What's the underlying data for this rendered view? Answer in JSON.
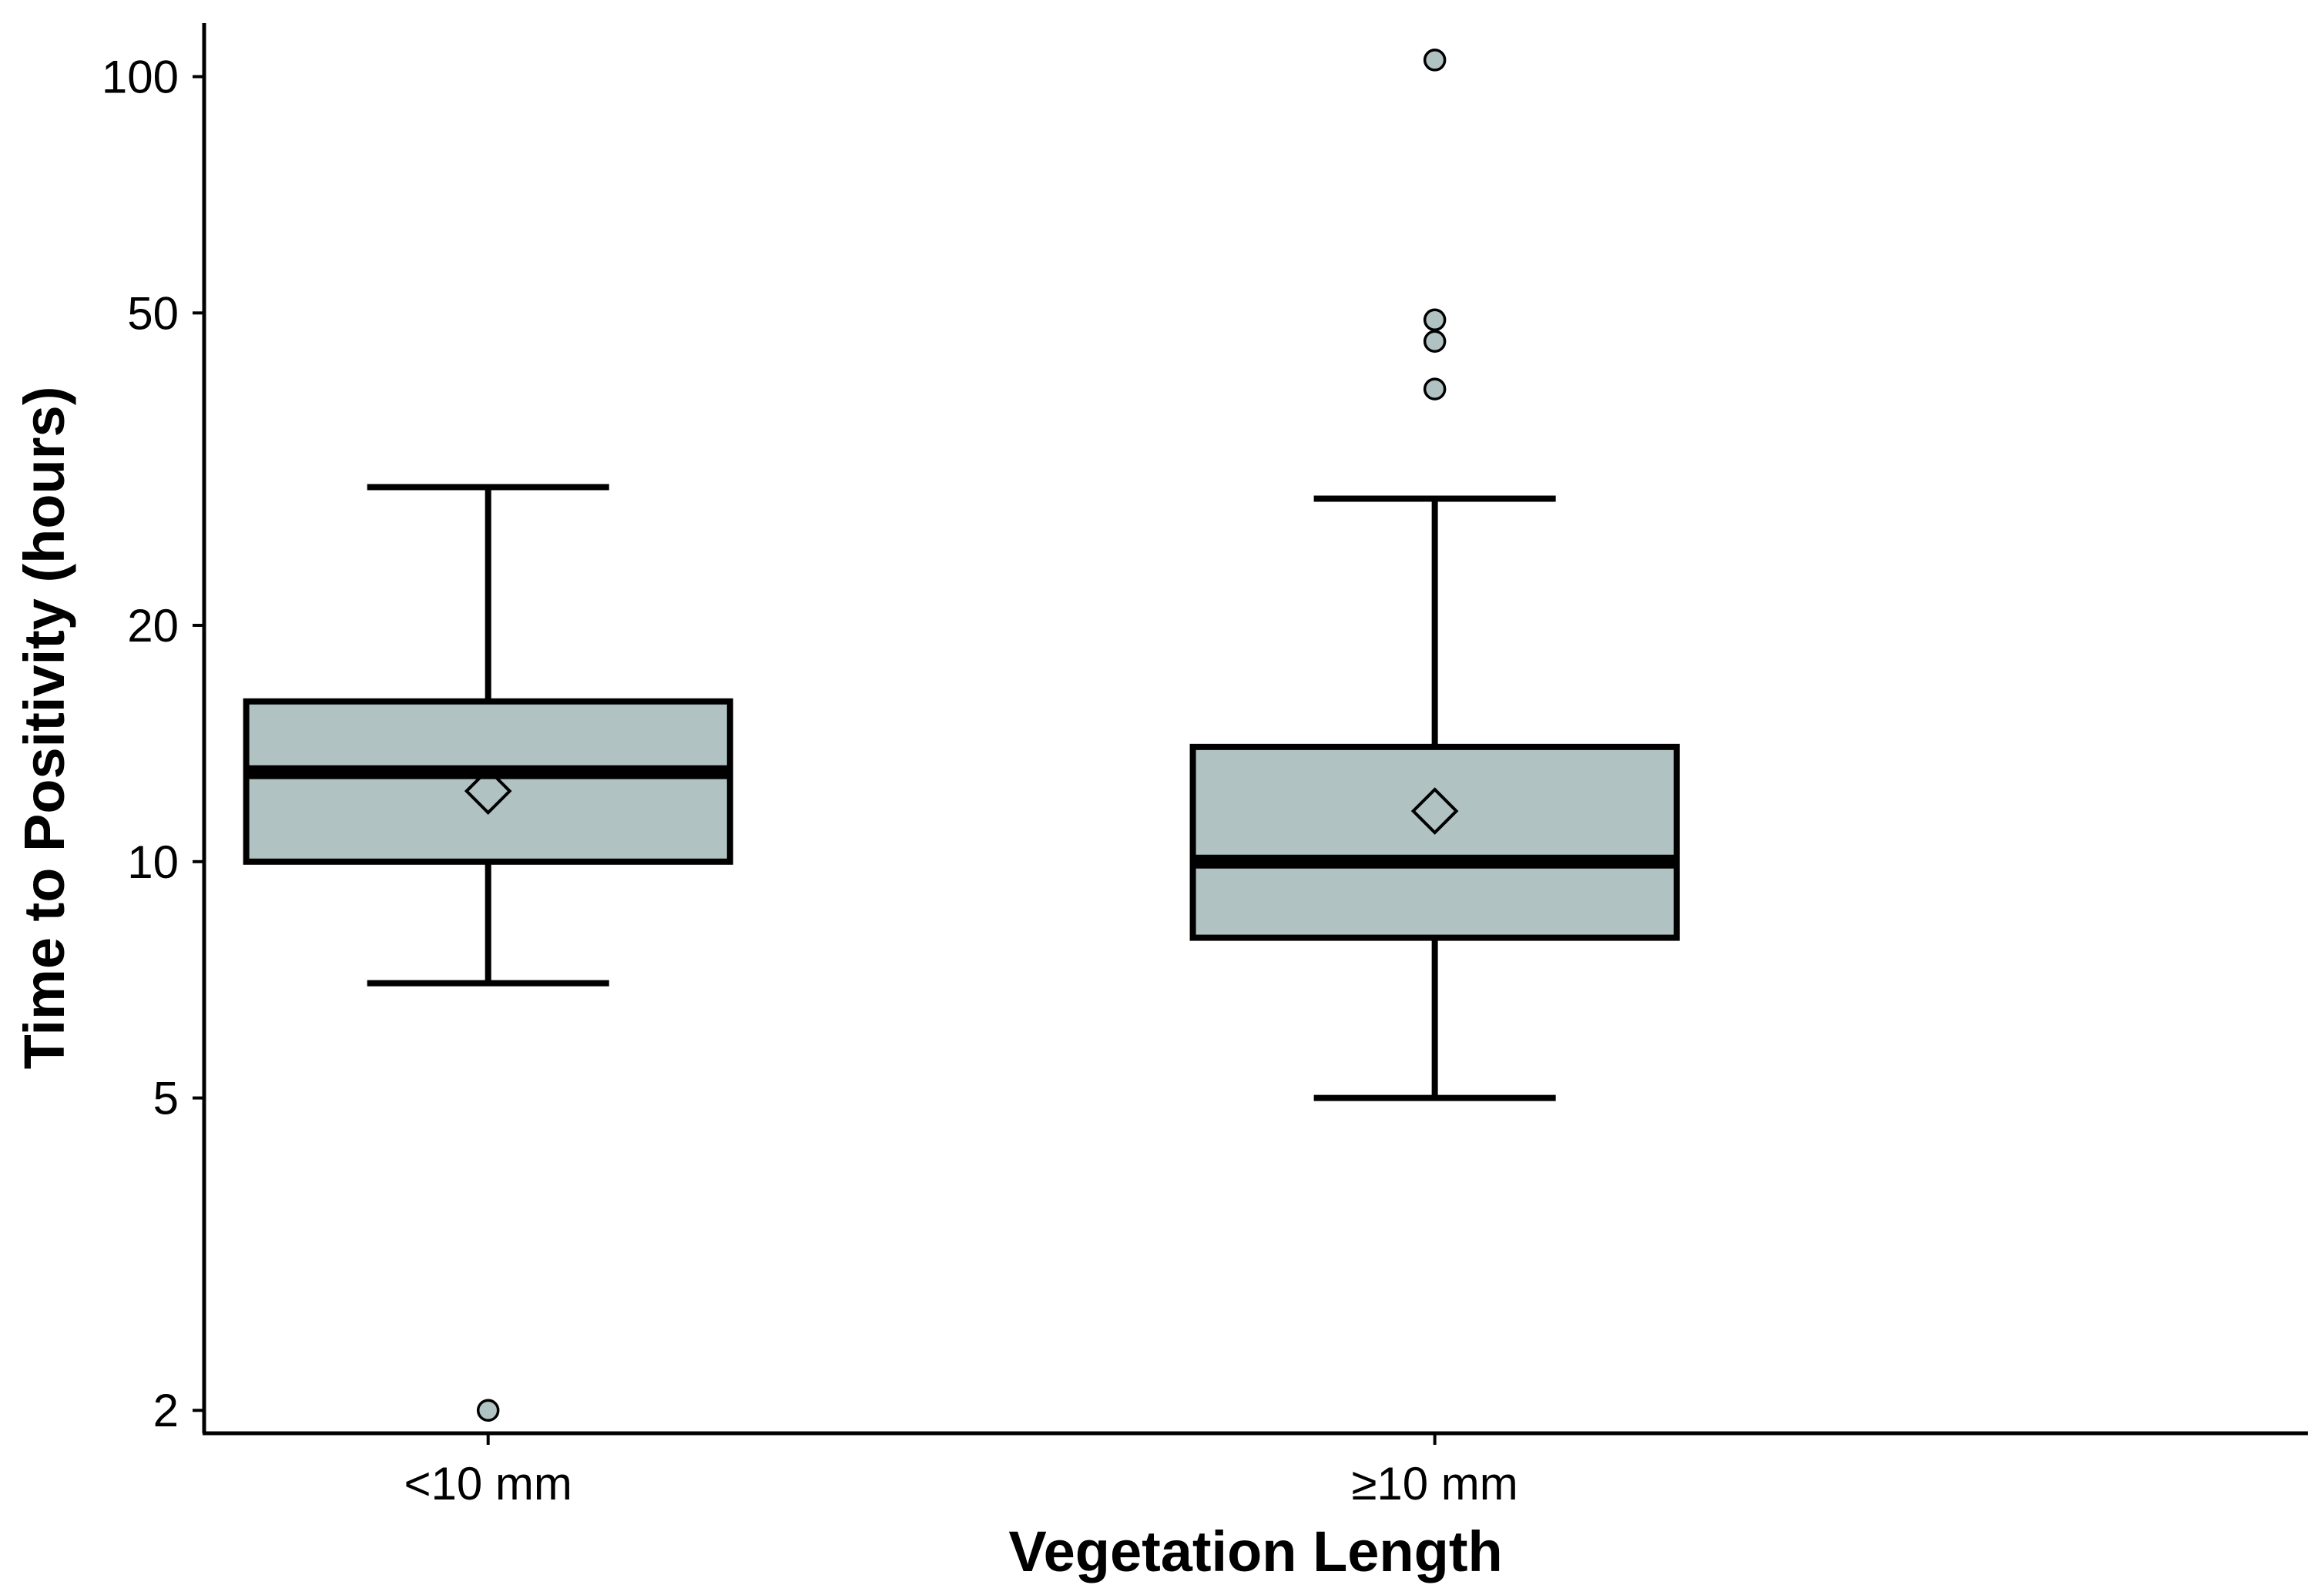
{
  "chart_data": {
    "type": "box",
    "xlabel": "Vegetation Length",
    "ylabel": "Time to Positivity (hours)",
    "y_scale": "log",
    "ylim": [
      1.87,
      117
    ],
    "y_ticks": [
      2,
      5,
      10,
      20,
      50,
      100
    ],
    "y_tick_labels": [
      "2",
      "5",
      "10",
      "20",
      "50",
      "100"
    ],
    "grid": false,
    "legend": "none",
    "categories": [
      "<10 mm",
      "≥10 mm"
    ],
    "boxes": [
      {
        "category": "<10 mm",
        "whisker_low": 7,
        "q1": 10,
        "median": 13,
        "q3": 16,
        "whisker_high": 30,
        "mean": 12.3,
        "outliers": [
          2
        ]
      },
      {
        "category": "≥10 mm",
        "whisker_low": 5,
        "q1": 8,
        "median": 10,
        "q3": 14,
        "whisker_high": 29,
        "mean": 11.6,
        "outliers": [
          40,
          46,
          49,
          105
        ]
      }
    ],
    "colors": {
      "box_fill": "#b1c2c3",
      "stroke": "#000000",
      "outlier_fill": "#b1c2c3"
    }
  }
}
